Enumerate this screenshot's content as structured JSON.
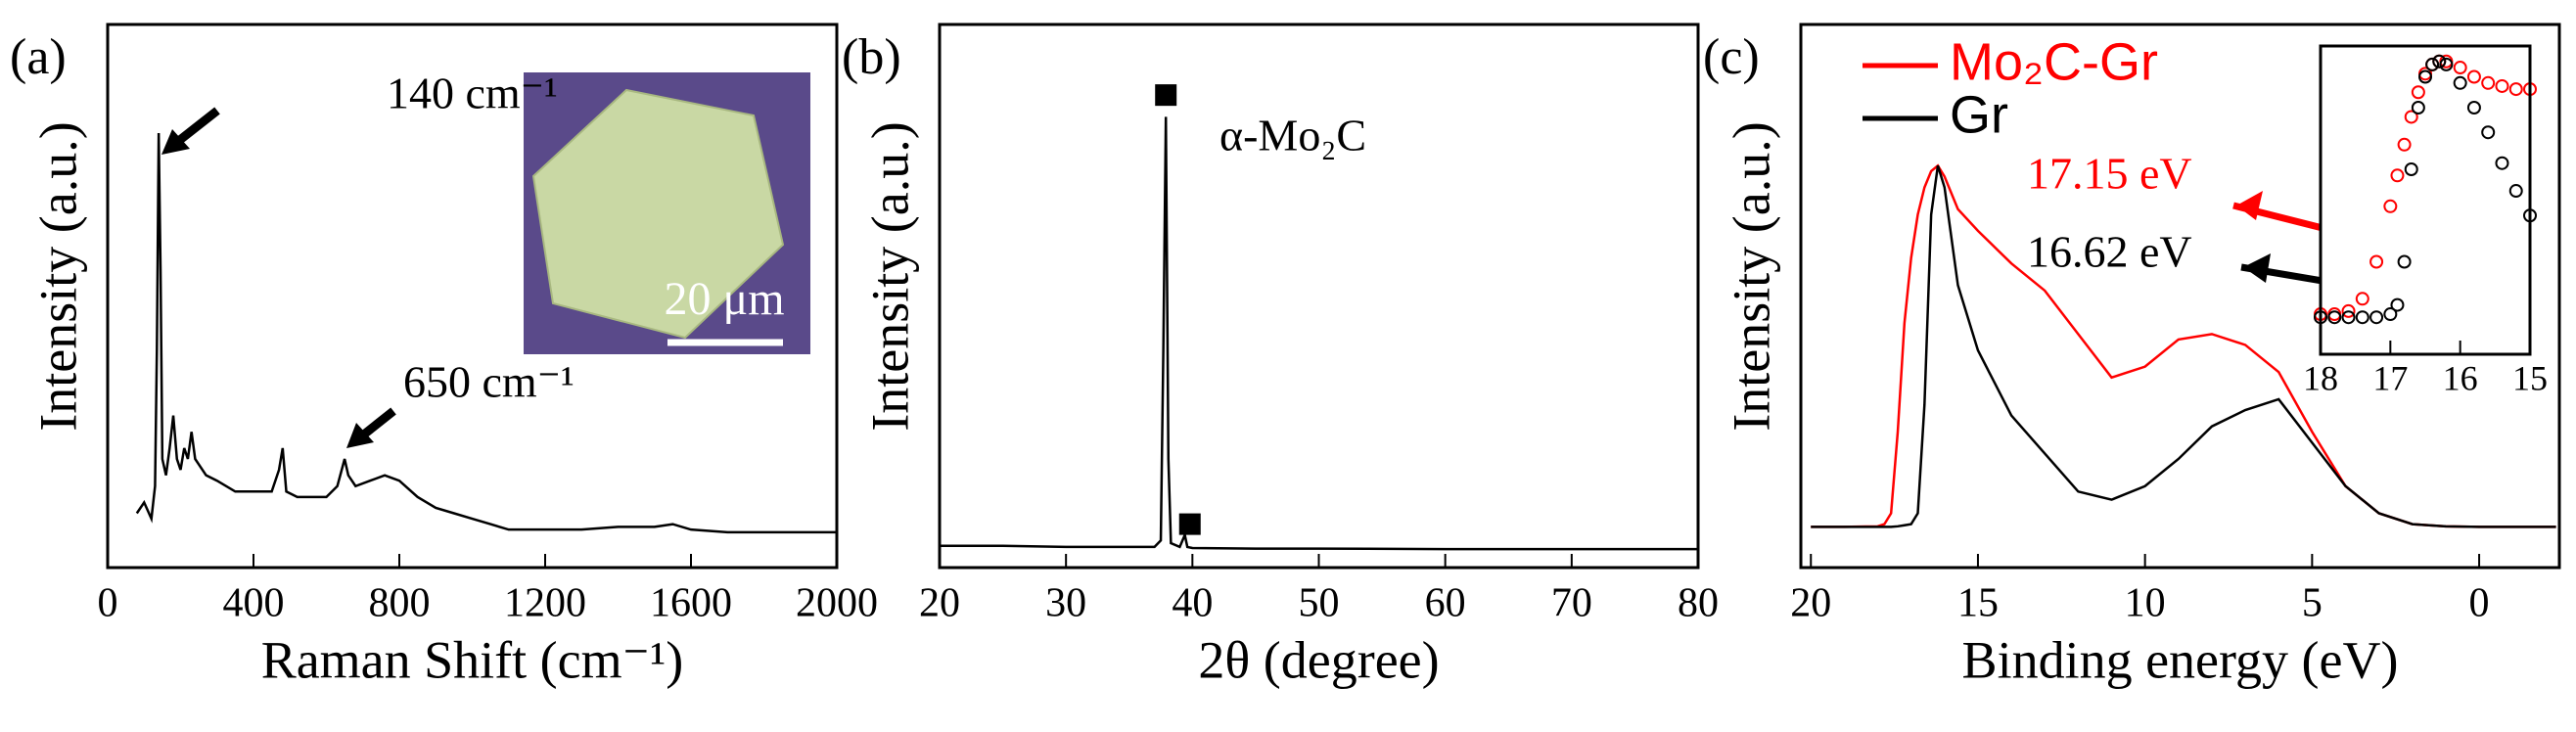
{
  "chart_data": [
    {
      "type": "line",
      "panel_label": "(a)",
      "x_label": "Raman Shift (cm⁻¹)",
      "y_label": "Intensity (a.u.)",
      "x": [
        80,
        100,
        120,
        130,
        135,
        140,
        145,
        150,
        160,
        170,
        180,
        190,
        200,
        210,
        220,
        230,
        240,
        250,
        270,
        300,
        350,
        400,
        450,
        470,
        480,
        490,
        520,
        560,
        600,
        630,
        650,
        660,
        680,
        720,
        760,
        800,
        850,
        900,
        950,
        1000,
        1050,
        1100,
        1200,
        1300,
        1400,
        1500,
        1550,
        1600,
        1700,
        1800,
        1900,
        2000
      ],
      "series": [
        {
          "color": "#000000",
          "values": [
            10,
            12,
            9,
            15,
            40,
            80,
            55,
            20,
            17,
            22,
            28,
            20,
            18,
            22,
            20,
            25,
            20,
            19,
            17,
            16,
            14,
            14,
            14,
            18,
            22,
            14,
            13,
            13,
            13,
            15,
            20,
            17,
            15,
            16,
            17,
            16,
            13,
            11,
            10,
            9,
            8,
            7,
            7,
            7,
            7.5,
            7.5,
            8,
            7,
            6.5,
            6.5,
            6.5,
            6.5
          ]
        }
      ],
      "xlim": [
        0,
        2000
      ],
      "xticks": [
        0,
        400,
        800,
        1200,
        1600,
        2000
      ],
      "ylim": [
        0,
        100
      ],
      "annotations": [
        {
          "text": "140 cm⁻¹",
          "color": "#000000"
        },
        {
          "text": "650 cm⁻¹",
          "color": "#000000"
        }
      ],
      "inset_label": "20 μm"
    },
    {
      "type": "line",
      "panel_label": "(b)",
      "x_label": "2θ (degree)",
      "y_label": "Intensity (a.u.)",
      "x": [
        20,
        25,
        30,
        35,
        37,
        37.5,
        37.7,
        37.9,
        38.1,
        38.3,
        39,
        39.4,
        39.6,
        40,
        45,
        50,
        60,
        70,
        80
      ],
      "series": [
        {
          "color": "#000000",
          "values": [
            4,
            4,
            3.8,
            3.8,
            3.8,
            5,
            40,
            83,
            20,
            4.5,
            3.8,
            6,
            3.8,
            3.6,
            3.5,
            3.5,
            3.4,
            3.4,
            3.4
          ]
        }
      ],
      "xlim": [
        20,
        80
      ],
      "xticks": [
        20,
        30,
        40,
        50,
        60,
        70,
        80
      ],
      "ylim": [
        0,
        100
      ],
      "markers": [
        {
          "x": 37.9,
          "y": 87
        },
        {
          "x": 39.8,
          "y": 8
        }
      ],
      "annotations": [
        {
          "text": "α-Mo₂C",
          "color": "#000000"
        }
      ]
    },
    {
      "type": "line",
      "panel_label": "(c)",
      "x_label": "Binding energy (eV)",
      "y_label": "Intensity (a.u.)",
      "x": [
        20,
        19,
        18,
        17.8,
        17.6,
        17.4,
        17.2,
        17.0,
        16.8,
        16.6,
        16.4,
        16.2,
        16.0,
        15.6,
        15,
        14,
        13,
        12,
        11,
        10,
        9,
        8,
        7,
        6,
        5,
        4,
        3,
        2,
        1,
        0,
        -1,
        -2.3
      ],
      "series": [
        {
          "name": "Mo₂C-Gr",
          "color": "#ff0000",
          "values": [
            7.5,
            7.5,
            7.6,
            8,
            10,
            25,
            45,
            57,
            65,
            70,
            73,
            74,
            72,
            66,
            62,
            56,
            51,
            43,
            35,
            37,
            42,
            43,
            41,
            36,
            25,
            15,
            10,
            8,
            7.6,
            7.5,
            7.5,
            7.5
          ]
        },
        {
          "name": "Gr",
          "color": "#000000",
          "values": [
            7.5,
            7.5,
            7.5,
            7.5,
            7.5,
            7.6,
            7.8,
            8,
            10,
            30,
            65,
            74,
            70,
            52,
            40,
            28,
            21,
            14,
            12.5,
            15,
            20,
            26,
            29,
            31,
            23,
            15,
            10,
            8,
            7.6,
            7.5,
            7.5,
            7.5
          ]
        }
      ],
      "xlim": [
        20.3,
        -2.4
      ],
      "xticks": [
        20,
        15,
        10,
        5,
        0
      ],
      "ylim": [
        0,
        100
      ],
      "legend": "top-left",
      "annotations": [
        {
          "text": "17.15 eV",
          "color": "#ff0000"
        },
        {
          "text": "16.62 eV",
          "color": "#000000"
        }
      ]
    },
    {
      "type": "scatter",
      "x": [
        18,
        17.8,
        17.6,
        17.4,
        17.2,
        17.0,
        16.9,
        16.8,
        16.7,
        16.6,
        16.5,
        16.4,
        16.3,
        16.2,
        16.0,
        15.8,
        15.6,
        15.4,
        15.2,
        15.0
      ],
      "series": [
        {
          "color": "#ff0000",
          "values": [
            13,
            13,
            14,
            18,
            30,
            48,
            58,
            68,
            77,
            85,
            91,
            94,
            95,
            95,
            93,
            90,
            88,
            87,
            86,
            86
          ]
        },
        {
          "color": "#000000",
          "values": [
            12,
            12,
            12,
            12,
            12,
            13,
            16,
            30,
            60,
            80,
            90,
            94,
            95,
            94,
            88,
            80,
            72,
            62,
            53,
            45
          ]
        }
      ],
      "xlim": [
        18,
        15
      ],
      "xticks": [
        18,
        17,
        16,
        15
      ],
      "ylim": [
        0,
        100
      ]
    }
  ]
}
